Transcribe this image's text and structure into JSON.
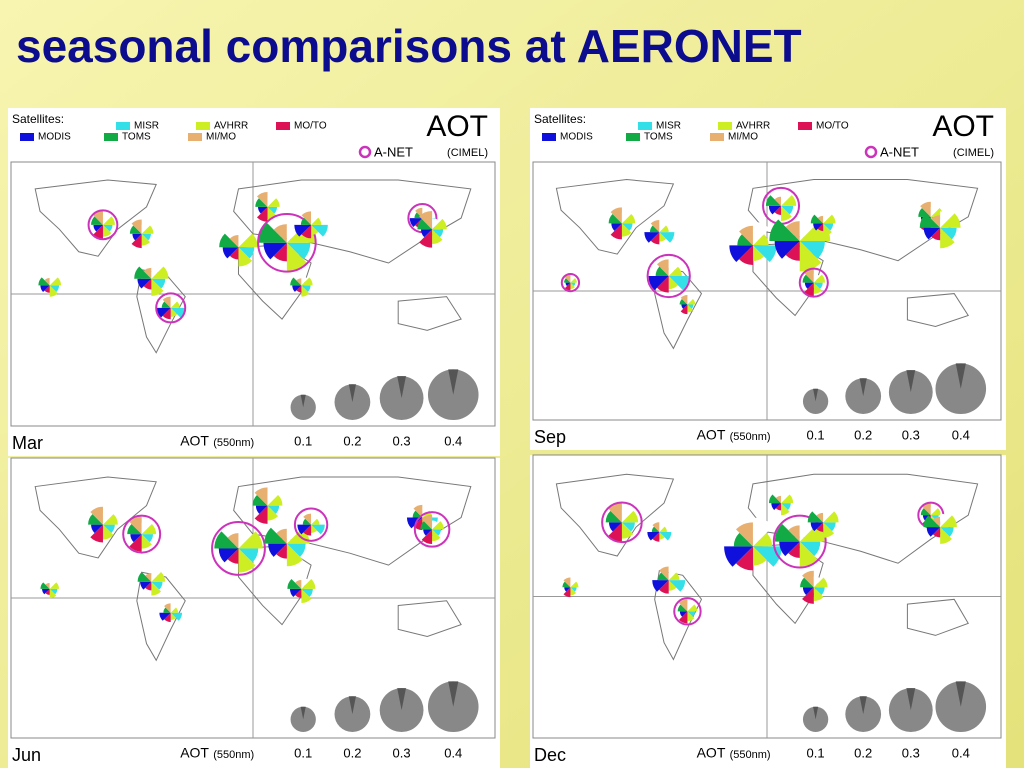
{
  "title": "seasonal comparisons at AERONET",
  "legend": {
    "heading": "Satellites:",
    "items": [
      {
        "name": "MISR",
        "color": "#33e0e8"
      },
      {
        "name": "AVHRR",
        "color": "#ccee22"
      },
      {
        "name": "MO/TO",
        "color": "#dd1155"
      },
      {
        "name": "MODIS",
        "color": "#1010dd"
      },
      {
        "name": "TOMS",
        "color": "#11aa44"
      },
      {
        "name": "MI/MO",
        "color": "#e8b070"
      }
    ],
    "quantity": "AOT",
    "ground": "A-NET",
    "ground_detail": "(CIMEL)",
    "ground_color": "#cc33bb"
  },
  "panels": [
    {
      "month": "Mar"
    },
    {
      "month": "Sep"
    },
    {
      "month": "Jun"
    },
    {
      "month": "Dec"
    }
  ],
  "scale": {
    "label": "AOT",
    "unit": "(550nm)",
    "values": [
      0.1,
      0.2,
      0.3,
      0.4
    ]
  }
}
